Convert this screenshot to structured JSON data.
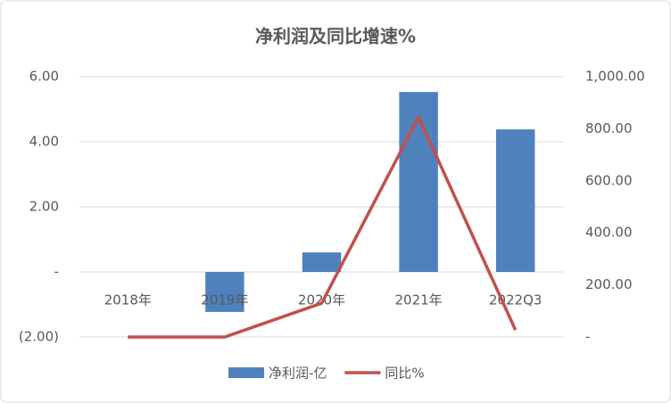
{
  "chart_data": {
    "type": "bar-line",
    "title": "净利润及同比增速%",
    "categories": [
      "2018年",
      "2019年",
      "2020年",
      "2021年",
      "2022Q3"
    ],
    "series": [
      {
        "name": "净利润-亿",
        "type": "bar",
        "color": "#4f81bd",
        "values": [
          0,
          -1.23,
          0.6,
          5.53,
          4.38
        ]
      },
      {
        "name": "同比%",
        "type": "line",
        "axis": "y2",
        "color": "#c0504d",
        "values": [
          0,
          0,
          130,
          845,
          27
        ]
      }
    ],
    "ylim": [
      -2,
      6
    ],
    "yticks": [
      {
        "value": -2,
        "label": "(2.00)"
      },
      {
        "value": 0,
        "label": "-"
      },
      {
        "value": 2,
        "label": "2.00"
      },
      {
        "value": 4,
        "label": "4.00"
      },
      {
        "value": 6,
        "label": "6.00"
      }
    ],
    "y2lim": [
      0,
      1000
    ],
    "y2ticks": [
      {
        "value": 0,
        "label": "-"
      },
      {
        "value": 200,
        "label": "200.00"
      },
      {
        "value": 400,
        "label": "400.00"
      },
      {
        "value": 600,
        "label": "600.00"
      },
      {
        "value": 800,
        "label": "800.00"
      },
      {
        "value": 1000,
        "label": "1,000.00"
      }
    ],
    "grid": true,
    "legend": "bottom"
  }
}
